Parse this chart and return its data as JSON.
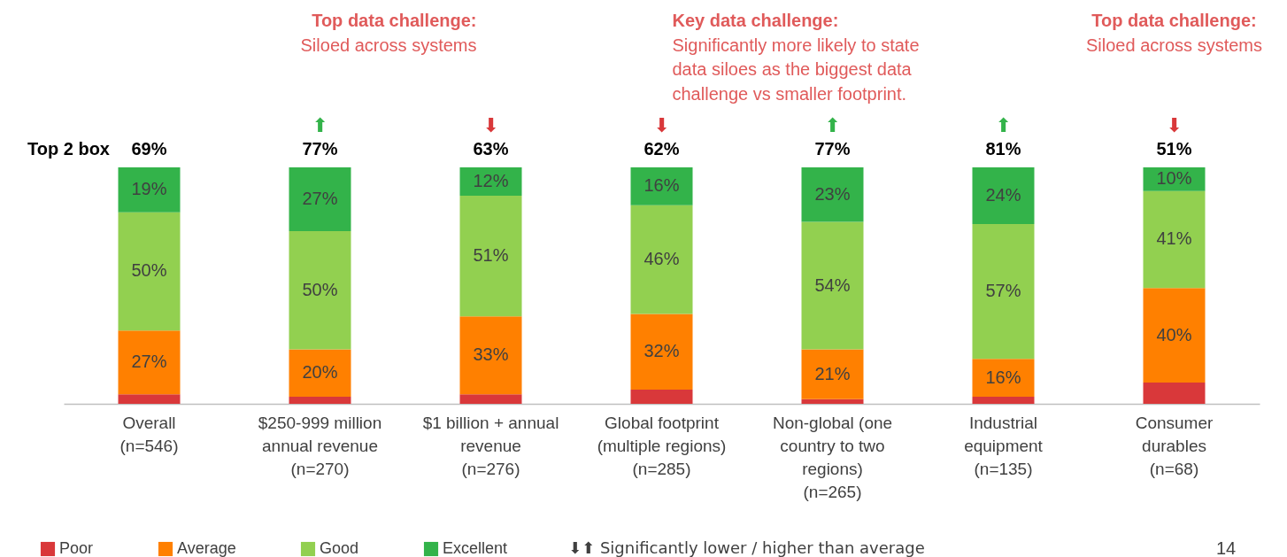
{
  "chart_data": {
    "type": "bar",
    "stacked": true,
    "legend": "bottom",
    "categories": [
      "Overall\n(n=546)",
      "$250-999 million\nannual revenue\n(n=270)",
      "$1 billion + annual\nrevenue\n(n=276)",
      "Global footprint\n(multiple regions)\n(n=285)",
      "Non-global (one\ncountry to two\nregions)\n(n=265)",
      "Industrial\nequipment\n(n=135)",
      "Consumer\ndurables\n(n=68)"
    ],
    "series": [
      {
        "name": "Poor",
        "color": "#d9383a",
        "values": [
          4,
          3,
          4,
          6,
          2,
          3,
          9
        ],
        "value_labels": [
          null,
          null,
          null,
          null,
          null,
          null,
          null
        ]
      },
      {
        "name": "Average",
        "color": "#ff8000",
        "values": [
          27,
          20,
          33,
          32,
          21,
          16,
          40
        ],
        "value_labels": [
          "27%",
          "20%",
          "33%",
          "32%",
          "21%",
          "16%",
          "40%"
        ]
      },
      {
        "name": "Good",
        "color": "#92d050",
        "values": [
          50,
          50,
          51,
          46,
          54,
          57,
          41
        ],
        "value_labels": [
          "50%",
          "50%",
          "51%",
          "46%",
          "54%",
          "57%",
          "41%"
        ]
      },
      {
        "name": "Excellent",
        "color": "#33b34a",
        "values": [
          19,
          27,
          12,
          16,
          23,
          24,
          10
        ],
        "value_labels": [
          "19%",
          "27%",
          "12%",
          "16%",
          "23%",
          "24%",
          "10%"
        ]
      }
    ],
    "annotations": [
      "Top 2 box",
      "69%",
      "77%",
      "63%",
      "62%",
      "77%",
      "81%",
      "51%",
      "Top data challenge:\nSiloed across systems",
      "Key data challenge:\nSignificantly more likely to state\ndata siloes as the biggest data\nchallenge vs smaller footprint.",
      "Top data challenge:\nSiloed across systems",
      "⬆",
      "⬇",
      "⬇",
      "⬆",
      "⬆",
      "⬇",
      "⬇⬆ Significantly lower / higher than average",
      "14"
    ]
  }
}
